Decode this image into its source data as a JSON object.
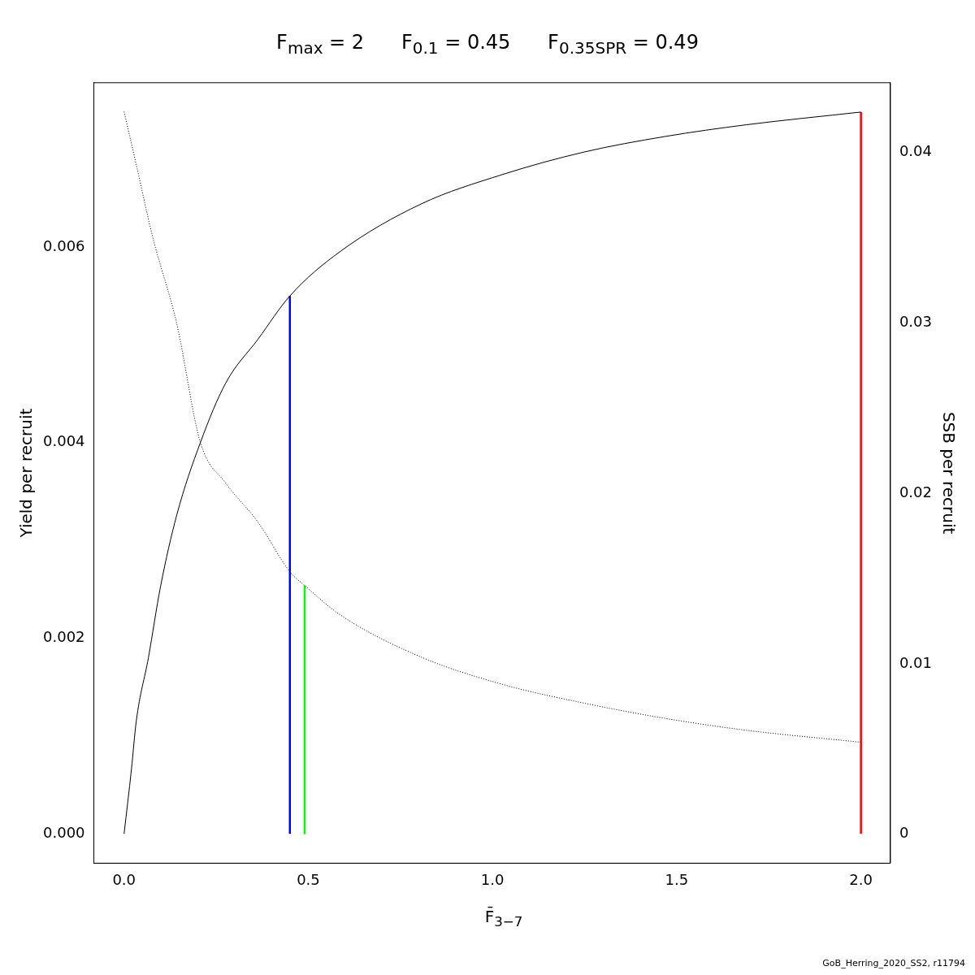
{
  "chart_data": {
    "type": "line",
    "title": "F$_{max}$ = 2      F$_{0.1}$ = 0.45      F$_{0.35SPR}$ = 0.49",
    "xlabel": "F̄$_{3−7}$",
    "ylabel": "Yield per recruit",
    "y2label": "SSB per recruit",
    "annotations": [
      "GoB_Herring_2020_SS2, r11794"
    ],
    "xlim": [
      -0.082,
      2.08
    ],
    "xticks": [
      {
        "value": 0,
        "label": "0.0"
      },
      {
        "value": 0.5,
        "label": "0.5"
      },
      {
        "value": 1,
        "label": "1.0"
      },
      {
        "value": 1.5,
        "label": "1.5"
      },
      {
        "value": 2,
        "label": "2.0"
      }
    ],
    "ylim": [
      -0.0003,
      0.00768
    ],
    "yticks": [
      {
        "value": 0,
        "label": "0.000"
      },
      {
        "value": 0.002,
        "label": "0.002"
      },
      {
        "value": 0.004,
        "label": "0.004"
      },
      {
        "value": 0.006,
        "label": "0.006"
      }
    ],
    "y2lim": [
      -0.0017,
      0.0441
    ],
    "y2ticks": [
      0,
      0.01,
      0.02,
      0.03,
      0.04
    ],
    "grid": false,
    "legend": false,
    "marker": "none",
    "series": [
      {
        "color": "#000000",
        "line_style": "solid",
        "x": [
          0,
          0.02,
          0.033,
          0.066,
          0.099,
          0.143,
          0.207,
          0.276,
          0.364,
          0.45,
          0.585,
          0.806,
          1.026,
          1.247,
          1.468,
          1.689,
          2.0
        ],
        "values": [
          0,
          0.00066,
          0.00115,
          0.0018,
          0.00253,
          0.00326,
          0.004,
          0.00461,
          0.00506,
          0.0055,
          0.00595,
          0.00644,
          0.00674,
          0.00697,
          0.00713,
          0.00725,
          0.00738
        ]
      },
      {
        "color": "#000000",
        "line_style": "dotted",
        "axis": "y2",
        "x": [
          0,
          0.033,
          0.077,
          0.143,
          0.207,
          0.276,
          0.364,
          0.45,
          0.49,
          0.585,
          0.806,
          1.026,
          1.247,
          1.468,
          1.689,
          2.0
        ],
        "values": [
          0.0424,
          0.0393,
          0.0351,
          0.02995,
          0.023,
          0.0206,
          0.0183,
          0.0154,
          0.0146,
          0.0129,
          0.0104,
          0.0088,
          0.0077,
          0.0068,
          0.0061,
          0.0054
        ]
      },
      {
        "color": "#0000ff",
        "line_style": "solid",
        "x": [
          0.45,
          0.45
        ],
        "values": [
          0,
          0.0055
        ]
      },
      {
        "color": "#00ff00",
        "line_style": "solid",
        "axis": "y2",
        "x": [
          0.49,
          0.49
        ],
        "values": [
          0,
          0.0146
        ]
      },
      {
        "color": "#ff0000",
        "line_style": "solid",
        "x": [
          2,
          2
        ],
        "values": [
          0,
          0.00738
        ]
      }
    ]
  }
}
